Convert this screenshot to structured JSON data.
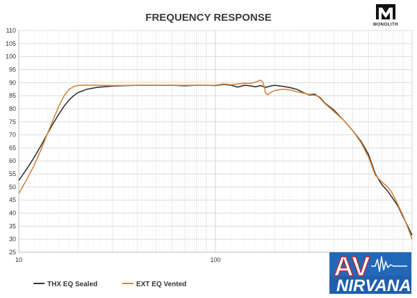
{
  "chart_data": {
    "type": "line",
    "title": "FREQUENCY RESPONSE",
    "xscale": "log",
    "xlim": [
      10,
      1000
    ],
    "ylim": [
      25,
      110
    ],
    "y_ticks": [
      25,
      30,
      35,
      40,
      45,
      50,
      55,
      60,
      65,
      70,
      75,
      80,
      85,
      90,
      95,
      100,
      105,
      110
    ],
    "x_tick_labels": [
      {
        "value": 10,
        "label": "10"
      },
      {
        "value": 100,
        "label": "100"
      }
    ],
    "grid": true,
    "legend_position": "bottom-left",
    "series": [
      {
        "name": "THX EQ Sealed",
        "color": "#333333",
        "points": [
          [
            10,
            52.5
          ],
          [
            11,
            57
          ],
          [
            12,
            61.5
          ],
          [
            13,
            66
          ],
          [
            14,
            70.5
          ],
          [
            15,
            74.5
          ],
          [
            16,
            78
          ],
          [
            17,
            81
          ],
          [
            18,
            83.3
          ],
          [
            19,
            85
          ],
          [
            20,
            86.2
          ],
          [
            22,
            87.4
          ],
          [
            25,
            88.2
          ],
          [
            30,
            88.7
          ],
          [
            40,
            89
          ],
          [
            50,
            89
          ],
          [
            60,
            89
          ],
          [
            70,
            88.8
          ],
          [
            80,
            89
          ],
          [
            90,
            89
          ],
          [
            100,
            88.9
          ],
          [
            110,
            89.3
          ],
          [
            120,
            89
          ],
          [
            130,
            88.3
          ],
          [
            140,
            89
          ],
          [
            150,
            88.8
          ],
          [
            160,
            88.4
          ],
          [
            170,
            88.9
          ],
          [
            180,
            88.2
          ],
          [
            190,
            88.7
          ],
          [
            200,
            89
          ],
          [
            220,
            88.6
          ],
          [
            240,
            88.1
          ],
          [
            260,
            87.4
          ],
          [
            280,
            86.2
          ],
          [
            300,
            85.3
          ],
          [
            320,
            85.4
          ],
          [
            340,
            84.3
          ],
          [
            360,
            82.2
          ],
          [
            400,
            79.5
          ],
          [
            450,
            75.5
          ],
          [
            500,
            71.5
          ],
          [
            550,
            67.5
          ],
          [
            600,
            62.5
          ],
          [
            650,
            55
          ],
          [
            700,
            51
          ],
          [
            750,
            48.5
          ],
          [
            800,
            45.5
          ],
          [
            850,
            42.5
          ],
          [
            900,
            38.5
          ],
          [
            950,
            35
          ],
          [
            1000,
            31.5
          ]
        ]
      },
      {
        "name": "EXT EQ Vented",
        "color": "#d4843b",
        "points": [
          [
            10,
            47.5
          ],
          [
            11,
            53
          ],
          [
            12,
            58.5
          ],
          [
            13,
            64.5
          ],
          [
            14,
            70.5
          ],
          [
            15,
            76
          ],
          [
            16,
            81
          ],
          [
            17,
            85
          ],
          [
            18,
            87.4
          ],
          [
            19,
            88.5
          ],
          [
            20,
            88.9
          ],
          [
            22,
            89.1
          ],
          [
            25,
            89
          ],
          [
            30,
            88.9
          ],
          [
            40,
            89
          ],
          [
            50,
            89
          ],
          [
            60,
            89
          ],
          [
            70,
            89
          ],
          [
            80,
            89
          ],
          [
            90,
            89
          ],
          [
            100,
            89
          ],
          [
            110,
            89.5
          ],
          [
            120,
            89.2
          ],
          [
            130,
            89.5
          ],
          [
            140,
            89.8
          ],
          [
            150,
            89.7
          ],
          [
            160,
            90.2
          ],
          [
            170,
            91
          ],
          [
            175,
            90
          ],
          [
            180,
            86
          ],
          [
            185,
            85.3
          ],
          [
            190,
            86.2
          ],
          [
            200,
            87
          ],
          [
            220,
            87.5
          ],
          [
            240,
            87.2
          ],
          [
            260,
            86.5
          ],
          [
            280,
            86
          ],
          [
            300,
            85.5
          ],
          [
            320,
            85.8
          ],
          [
            340,
            84
          ],
          [
            360,
            82
          ],
          [
            400,
            79
          ],
          [
            450,
            75.5
          ],
          [
            500,
            71.5
          ],
          [
            550,
            67
          ],
          [
            600,
            61.5
          ],
          [
            650,
            54.5
          ],
          [
            700,
            52
          ],
          [
            750,
            50
          ],
          [
            780,
            48.5
          ],
          [
            800,
            47
          ],
          [
            850,
            43
          ],
          [
            900,
            39
          ],
          [
            950,
            34.5
          ],
          [
            1000,
            30
          ]
        ]
      }
    ]
  },
  "branding": {
    "logo_text": "MONOLITH",
    "watermark_letters": "AV",
    "watermark_word": "NIRVANA"
  }
}
